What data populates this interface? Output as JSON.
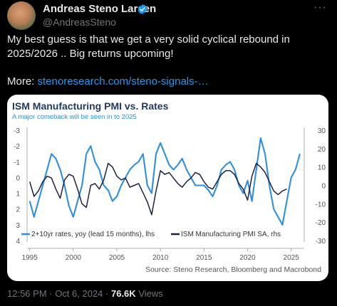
{
  "tweet": {
    "author_name": "Andreas Steno Larsen",
    "handle": "@AndreasSteno",
    "text": "My best guess is that we get a very solid cyclical rebound in 2025/2026 .. Big returns upcoming!",
    "more_label": "More:",
    "link": "stenoresearch.com/steno-signals-…",
    "timestamp": "12:56 PM · Oct 6, 2024",
    "views_count": "76.6K",
    "views_label": "Views",
    "more_menu": "···"
  },
  "colors": {
    "verified": "#1d9bf0",
    "series_rates": "#2e8fe0",
    "series_pmi": "#1c2340",
    "title": "#1f3a5f",
    "subtitle": "#2e8fe0"
  },
  "chart_data": {
    "type": "line",
    "title": "ISM Manufacturing PMI vs. Rates",
    "subtitle": "A major comeback will be seen in to 2025",
    "source": "Source: Steno Research, Bloomberg and Macrobond",
    "x_ticks": [
      "1995",
      "2000",
      "2005",
      "2010",
      "2015",
      "2020",
      "2025"
    ],
    "left_axis": {
      "ticks": [
        "-3",
        "-2",
        "-1",
        "0",
        "1",
        "2",
        "3",
        "4"
      ],
      "range": [
        4,
        -3
      ],
      "inverted": true
    },
    "right_axis": {
      "ticks": [
        "30",
        "20",
        "10",
        "0",
        "-10",
        "-20",
        "-30"
      ],
      "range": [
        -30,
        30
      ]
    },
    "legend": [
      "2+10yr rates, yoy (lead 15 months), lhs",
      "ISM Manufacturing PMI SA, rhs"
    ],
    "series": [
      {
        "name": "2+10yr rates, yoy (lead 15 months), lhs",
        "axis": "left",
        "x": [
          1995,
          1995.5,
          1996,
          1996.5,
          1997,
          1997.5,
          1998,
          1998.5,
          1999,
          1999.5,
          2000,
          2000.5,
          2001,
          2001.5,
          2002,
          2002.5,
          2003,
          2003.5,
          2004,
          2004.5,
          2005,
          2005.5,
          2006,
          2006.5,
          2007,
          2007.5,
          2008,
          2008.5,
          2009,
          2009.5,
          2010,
          2010.5,
          2011,
          2011.5,
          2012,
          2012.5,
          2013,
          2013.5,
          2014,
          2014.5,
          2015,
          2015.5,
          2016,
          2016.5,
          2017,
          2017.5,
          2018,
          2018.5,
          2019,
          2019.5,
          2020,
          2020.5,
          2021,
          2021.5,
          2022,
          2022.5,
          2023,
          2023.5,
          2024,
          2024.5,
          2025,
          2025.5,
          2026
        ],
        "values": [
          1.5,
          2.5,
          1.5,
          0.5,
          -0.5,
          -1.5,
          -1.2,
          -0.5,
          0.5,
          1.8,
          2.5,
          1.5,
          0.5,
          -1.5,
          -2.0,
          -1.0,
          -0.5,
          0.5,
          0.8,
          1.5,
          1.2,
          0.5,
          0.0,
          -0.5,
          -0.8,
          -1.0,
          -1.5,
          0.5,
          1.0,
          -1.5,
          -2.2,
          -1.5,
          -0.8,
          -0.5,
          -0.8,
          -1.2,
          -0.5,
          0.0,
          0.5,
          0.5,
          0.5,
          0.8,
          1.2,
          0.5,
          -0.5,
          -0.8,
          -1.0,
          -0.5,
          0.5,
          1.0,
          0.2,
          1.5,
          -0.5,
          -2.5,
          -1.5,
          0.5,
          2.0,
          2.5,
          3.0,
          1.5,
          0.0,
          -0.5,
          -1.5
        ]
      },
      {
        "name": "ISM Manufacturing PMI SA, rhs",
        "axis": "right",
        "x": [
          1995,
          1995.5,
          1996,
          1996.5,
          1997,
          1997.5,
          1998,
          1998.5,
          1999,
          1999.5,
          2000,
          2000.5,
          2001,
          2001.5,
          2002,
          2002.5,
          2003,
          2003.5,
          2004,
          2004.5,
          2005,
          2005.5,
          2006,
          2006.5,
          2007,
          2007.5,
          2008,
          2008.5,
          2009,
          2009.5,
          2010,
          2010.5,
          2011,
          2011.5,
          2012,
          2012.5,
          2013,
          2013.5,
          2014,
          2014.5,
          2015,
          2015.5,
          2016,
          2016.5,
          2017,
          2017.5,
          2018,
          2018.5,
          2019,
          2019.5,
          2020,
          2020.5,
          2021,
          2021.5,
          2022,
          2022.5,
          2023,
          2023.5,
          2024,
          2024.5
        ],
        "values": [
          2,
          -6,
          -3,
          2,
          5,
          4,
          -2,
          -7,
          3,
          6,
          5,
          -2,
          -10,
          -12,
          0,
          1,
          -2,
          3,
          12,
          10,
          5,
          3,
          4,
          -1,
          0,
          1,
          -4,
          -9,
          -16,
          -3,
          8,
          6,
          7,
          4,
          1,
          -1,
          2,
          4,
          7,
          6,
          2,
          -1,
          -2,
          2,
          6,
          8,
          8,
          6,
          1,
          -2,
          -8,
          5,
          12,
          10,
          7,
          2,
          -3,
          -5,
          -3,
          -2
        ]
      }
    ]
  }
}
